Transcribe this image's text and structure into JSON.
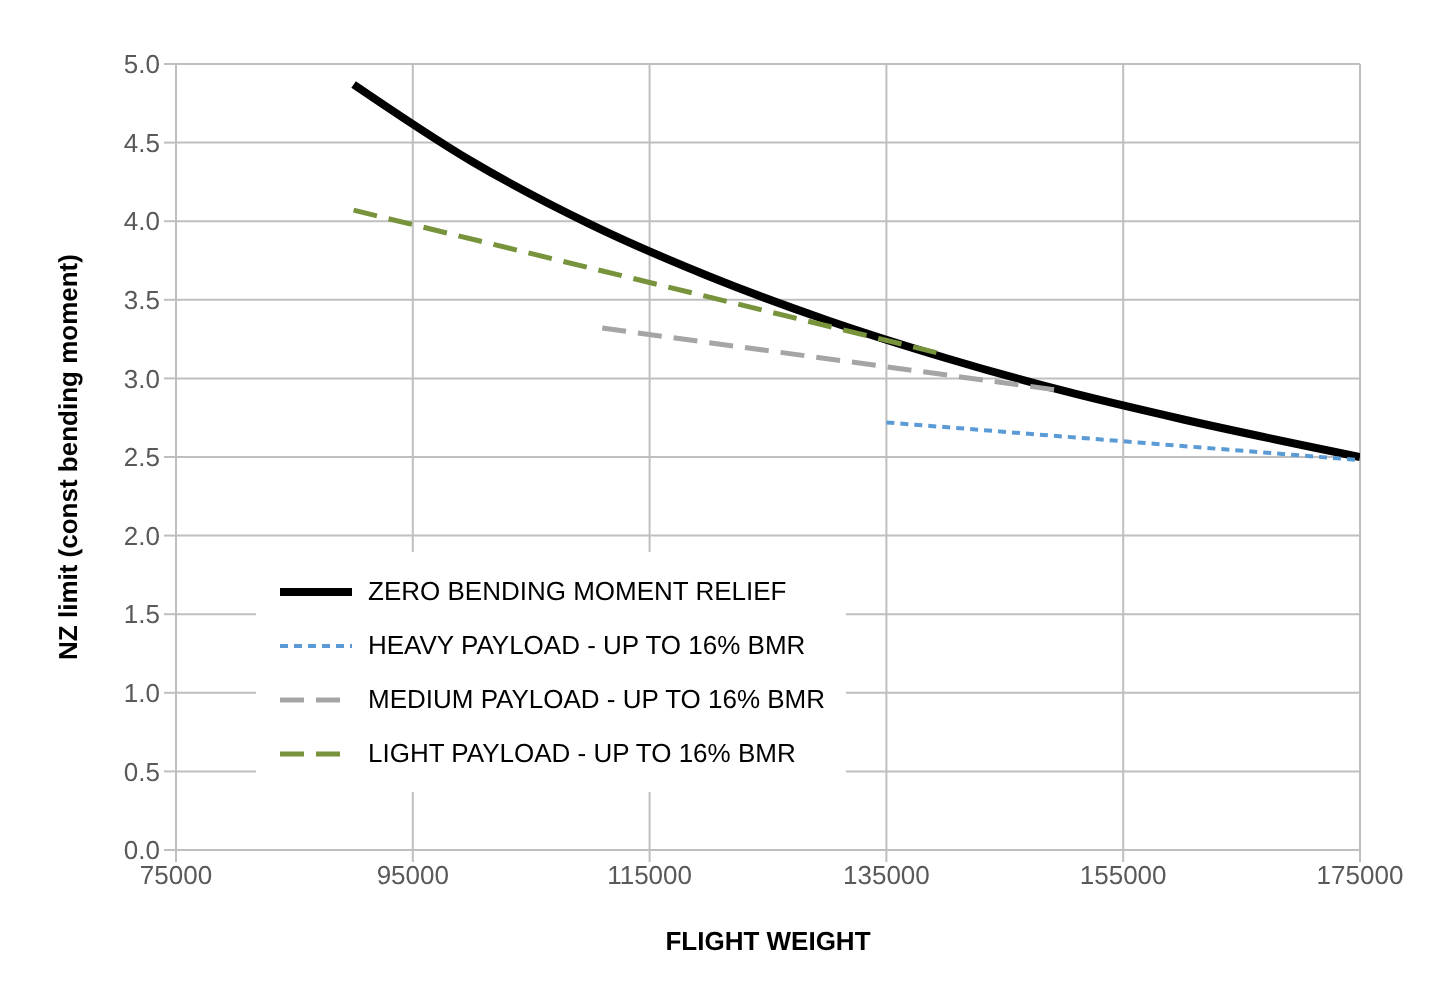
{
  "chart_data": {
    "type": "line",
    "xlabel": "FLIGHT WEIGHT",
    "ylabel": "NZ limit (const bending moment)",
    "xlim": [
      75000,
      175000
    ],
    "xticks": [
      75000,
      95000,
      115000,
      135000,
      155000,
      175000
    ],
    "ylim": [
      0,
      5
    ],
    "yticks": [
      {
        "value": 0,
        "label": "0.0"
      },
      0.5,
      {
        "value": 1,
        "label": "1.0"
      },
      1.5,
      {
        "value": 2,
        "label": "2.0"
      },
      2.5,
      {
        "value": 3,
        "label": "3.0"
      },
      3.5,
      {
        "value": 4,
        "label": "4.0"
      },
      4.5,
      {
        "value": 5,
        "label": "5.0"
      }
    ],
    "grid": true,
    "legend": "bottom left",
    "series": [
      {
        "name": "ZERO BENDING MOMENT RELIEF",
        "color": "#000000",
        "line_style": "solid",
        "x": [
          90000,
          100000,
          110000,
          120000,
          130000,
          140000,
          150000,
          160000,
          175000
        ],
        "values": [
          4.87,
          4.38,
          3.98,
          3.65,
          3.37,
          3.13,
          2.92,
          2.74,
          2.5
        ]
      },
      {
        "name": "HEAVY PAYLOAD - UP TO 16% BMR",
        "color": "#5b9bd5",
        "line_style": "dotted",
        "x": [
          135000,
          175000
        ],
        "values": [
          2.72,
          2.48
        ]
      },
      {
        "name": "MEDIUM PAYLOAD - UP TO 16% BMR",
        "color": "#a5a5a5",
        "line_style": "dashed",
        "x": [
          111000,
          150000
        ],
        "values": [
          3.32,
          2.92
        ]
      },
      {
        "name": "LIGHT PAYLOAD - UP TO 16% BMR",
        "color": "#77933c",
        "line_style": "dashed",
        "x": [
          90000,
          140000
        ],
        "values": [
          4.07,
          3.15
        ]
      }
    ]
  }
}
